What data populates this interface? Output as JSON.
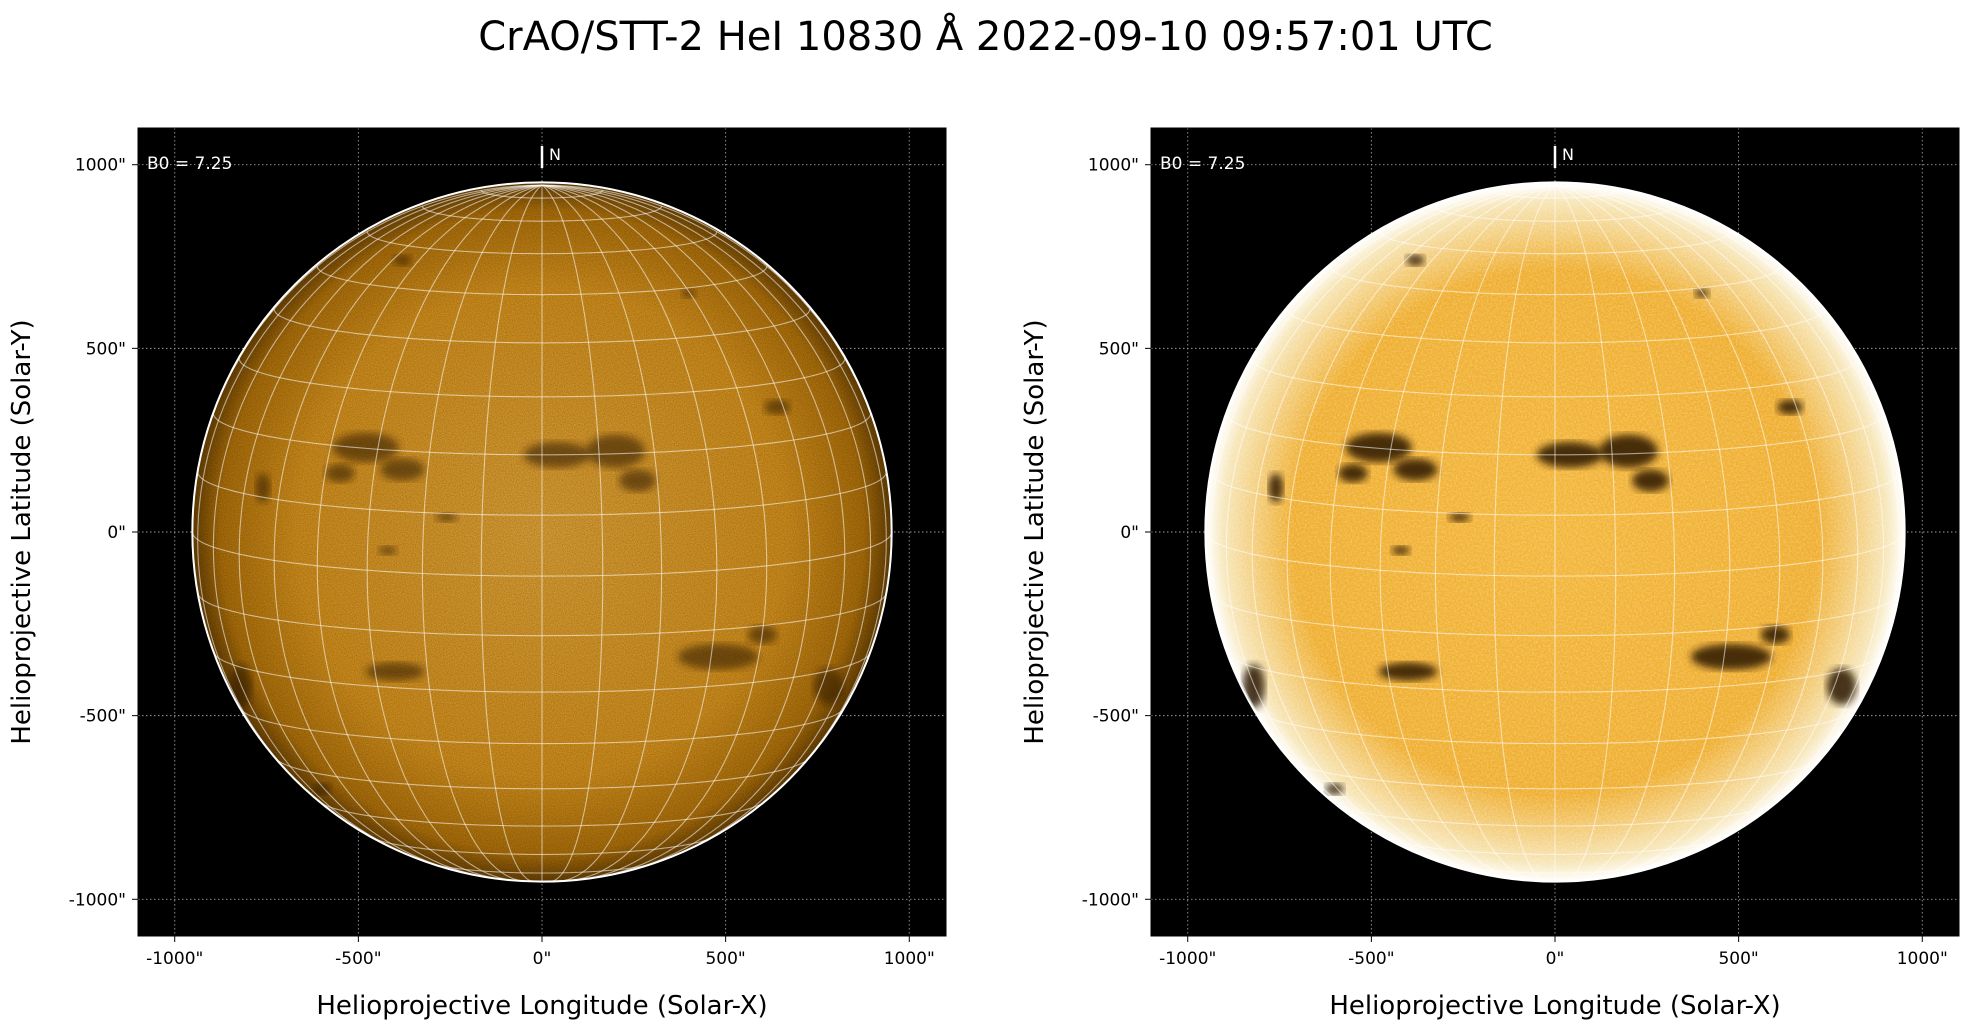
{
  "figure": {
    "title": "CrAO/STT-2 HeI 10830 Å 2022-09-10 09:57:01 UTC"
  },
  "panels": [
    {
      "id": "left",
      "variant": "normal contrast",
      "b0_label": "B0 = 7.25",
      "north_label": "N",
      "x_label": "Helioprojective Longitude (Solar-X)",
      "y_label": "Helioprojective Latitude (Solar-Y)",
      "x_ticks": [
        {
          "value": -1000,
          "label": "-1000\""
        },
        {
          "value": -500,
          "label": "-500\""
        },
        {
          "value": 0,
          "label": "0\""
        },
        {
          "value": 500,
          "label": "500\""
        },
        {
          "value": 1000,
          "label": "1000\""
        }
      ],
      "y_ticks": [
        {
          "value": 1000,
          "label": "1000\""
        },
        {
          "value": 500,
          "label": "500\""
        },
        {
          "value": 0,
          "label": "0\""
        },
        {
          "value": -500,
          "label": "-500\""
        },
        {
          "value": -1000,
          "label": "-1000\""
        }
      ],
      "xlim": [
        -1100,
        1100
      ],
      "ylim": [
        -1100,
        1100
      ],
      "solar_radius_arcsec": 952,
      "disk_color": "#d9900c",
      "background_color": "#000000",
      "grid": true
    },
    {
      "id": "right",
      "variant": "enhanced contrast",
      "b0_label": "B0 = 7.25",
      "north_label": "N",
      "x_label": "Helioprojective Longitude (Solar-X)",
      "y_label": "Helioprojective Latitude (Solar-Y)",
      "x_ticks": [
        {
          "value": -1000,
          "label": "-1000\""
        },
        {
          "value": -500,
          "label": "-500\""
        },
        {
          "value": 0,
          "label": "0\""
        },
        {
          "value": 500,
          "label": "500\""
        },
        {
          "value": 1000,
          "label": "1000\""
        }
      ],
      "y_ticks": [
        {
          "value": 1000,
          "label": "1000\""
        },
        {
          "value": 500,
          "label": "500\""
        },
        {
          "value": 0,
          "label": "0\""
        },
        {
          "value": -500,
          "label": "-500\""
        },
        {
          "value": -1000,
          "label": "-1000\""
        }
      ],
      "xlim": [
        -1100,
        1100
      ],
      "ylim": [
        -1100,
        1100
      ],
      "solar_radius_arcsec": 952,
      "disk_color": "#e6a21a",
      "background_color": "#000000",
      "grid": true
    }
  ]
}
